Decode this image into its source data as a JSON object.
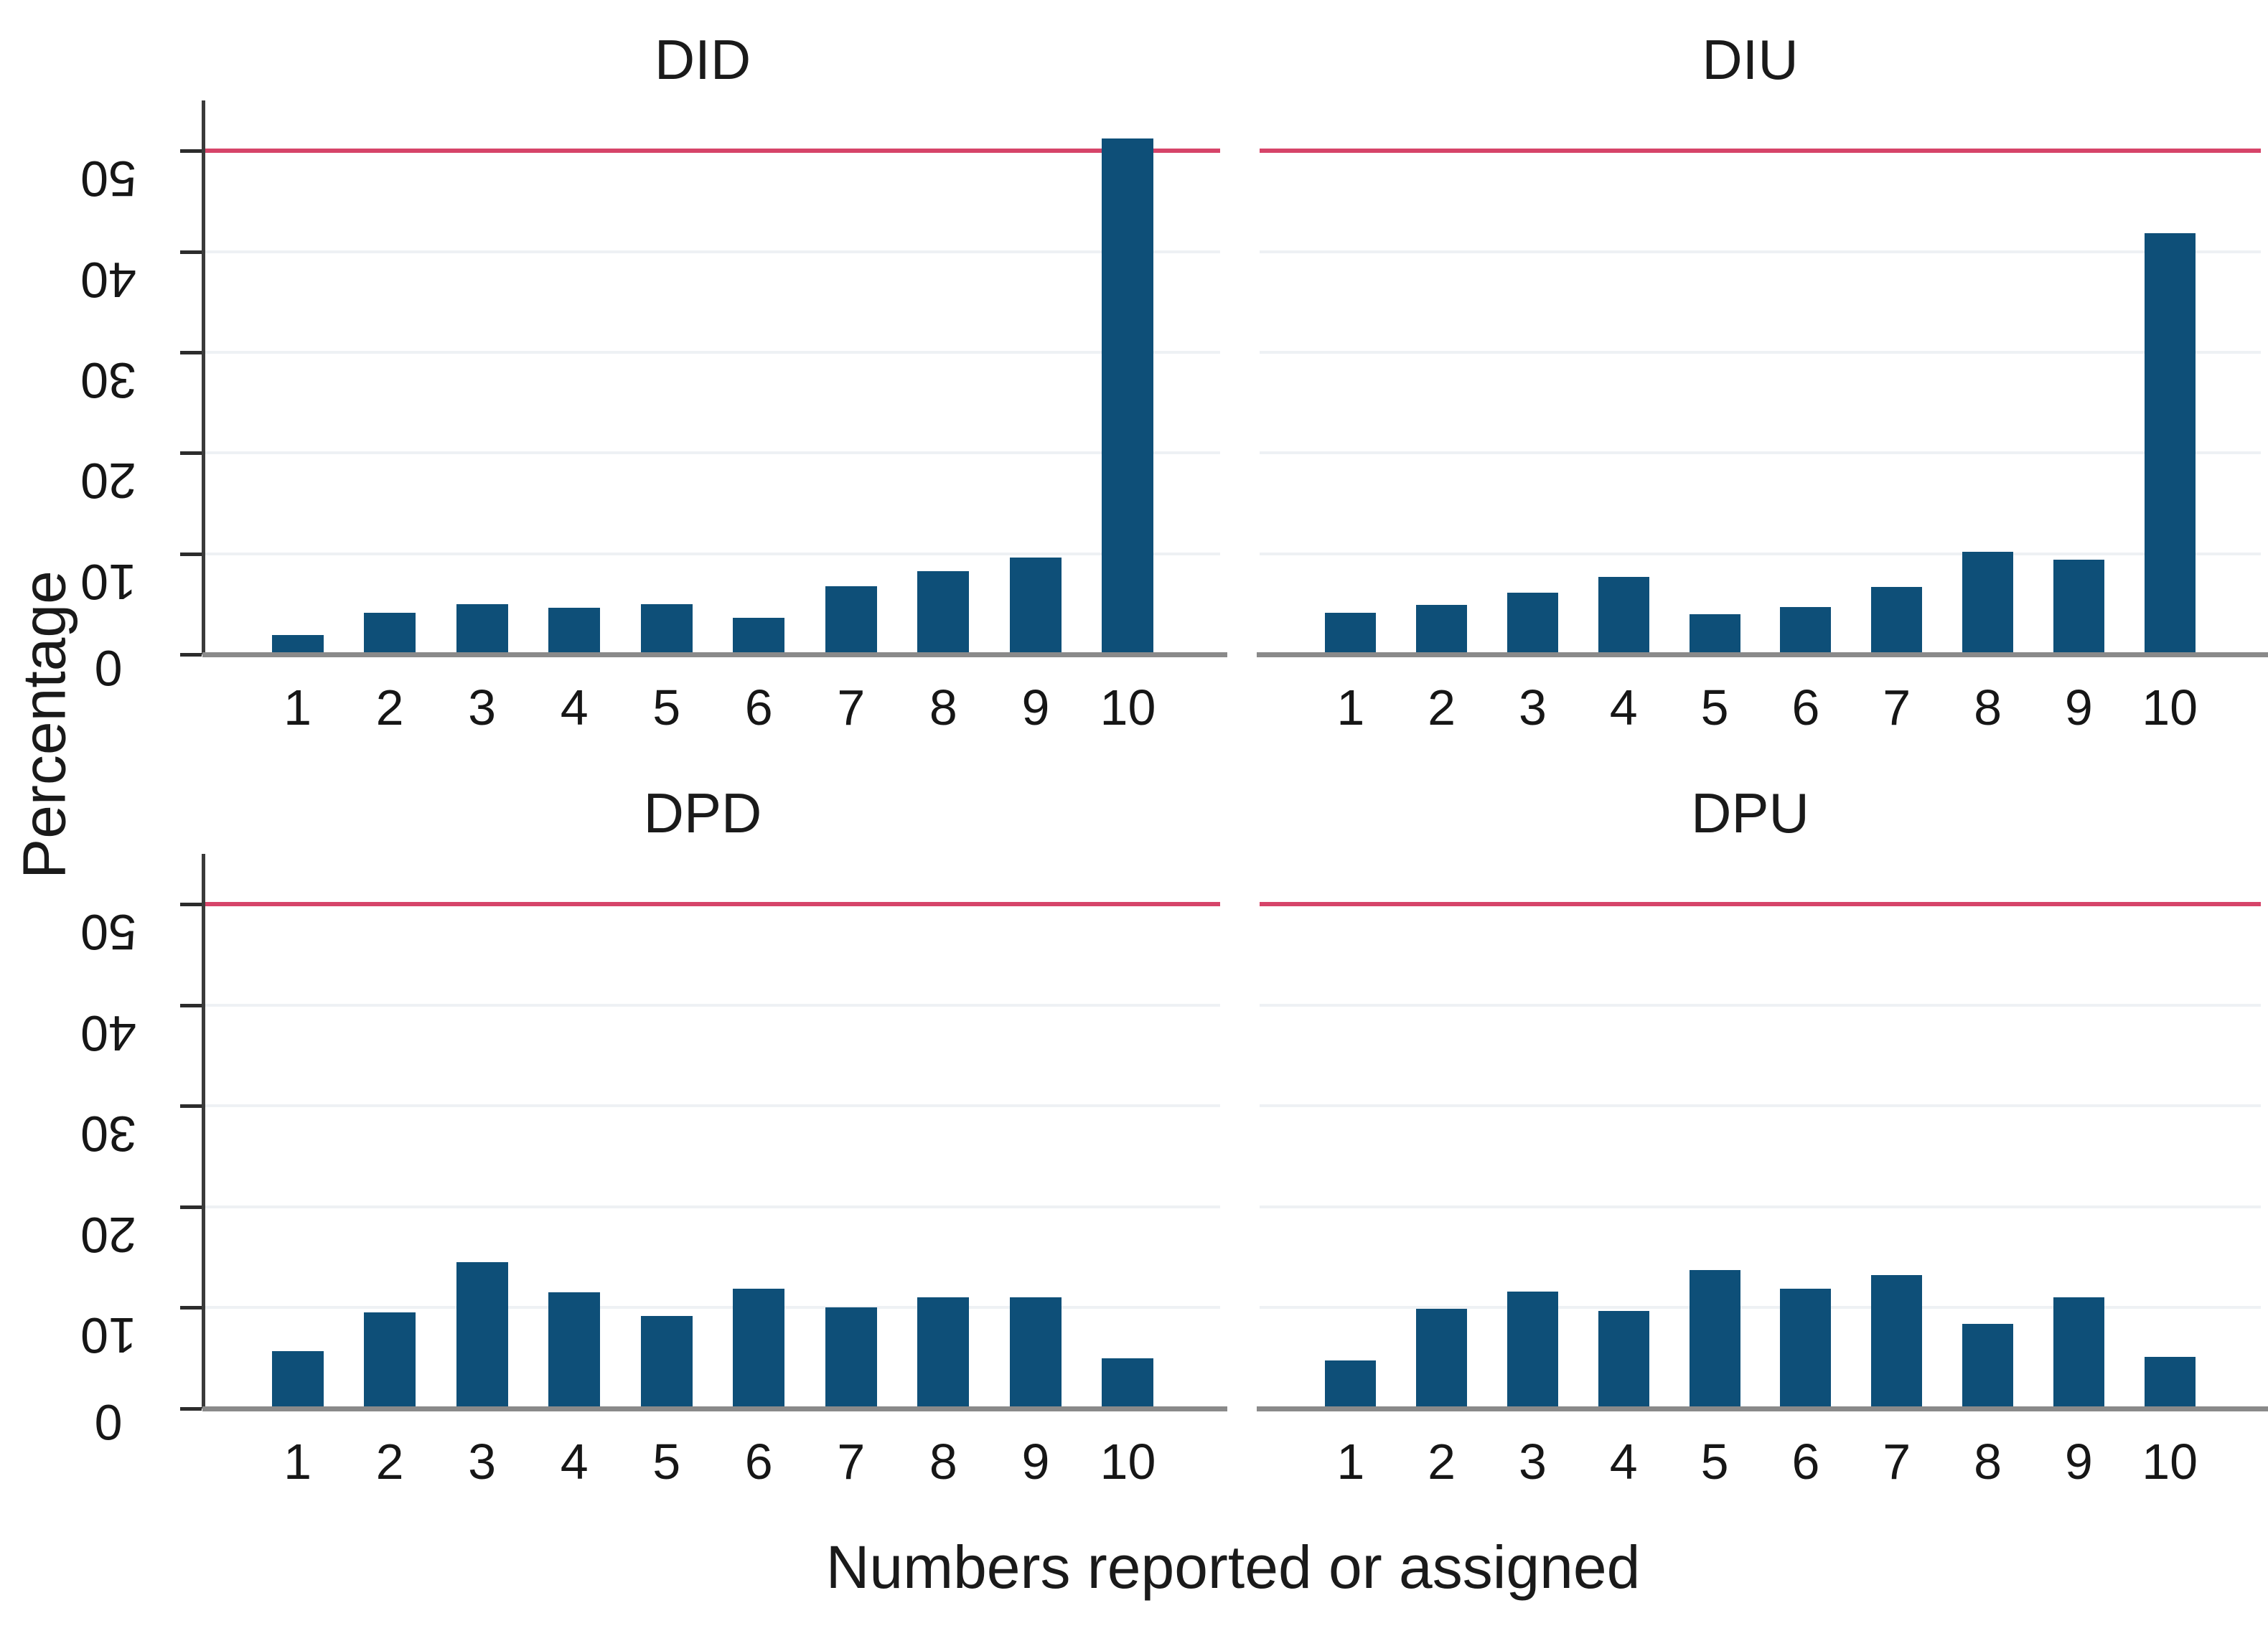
{
  "figure": {
    "background": "#ffffff",
    "ylabel": "Percentage",
    "xlabel": "Numbers reported or assigned"
  },
  "chart_data": {
    "type": "bar",
    "layout": "2x2 panel grid, shared axes",
    "title": "",
    "xlabel": "Numbers reported or assigned",
    "ylabel": "Percentage",
    "categories": [
      "1",
      "2",
      "3",
      "4",
      "5",
      "6",
      "7",
      "8",
      "9",
      "10"
    ],
    "yticks": [
      0,
      10,
      20,
      30,
      40,
      50
    ],
    "ylim": [
      0,
      55
    ],
    "grid": "horizontal light gridlines at each ytick",
    "legend": "none",
    "reference_line": {
      "y": 50,
      "color": "#d64469"
    },
    "bar_color": "#0e4f78",
    "grid_color": "#eef1f4",
    "axis_color": "#3a3a3a",
    "baseline_color": "#8a8a8a",
    "text_color": "#161616",
    "panels": [
      {
        "title": "DID",
        "values": [
          1.9,
          4.1,
          5.0,
          4.6,
          5.0,
          3.6,
          6.8,
          8.3,
          9.6,
          51.2
        ]
      },
      {
        "title": "DIU",
        "values": [
          4.1,
          4.9,
          6.1,
          7.7,
          4.0,
          4.7,
          6.7,
          10.2,
          9.4,
          41.8
        ]
      },
      {
        "title": "DPD",
        "values": [
          5.7,
          9.5,
          14.5,
          11.5,
          9.2,
          11.9,
          10.0,
          11.0,
          11.0,
          5.0
        ]
      },
      {
        "title": "DPU",
        "values": [
          4.8,
          9.9,
          11.6,
          9.7,
          13.7,
          11.9,
          13.2,
          8.4,
          11.0,
          5.1
        ]
      }
    ]
  }
}
